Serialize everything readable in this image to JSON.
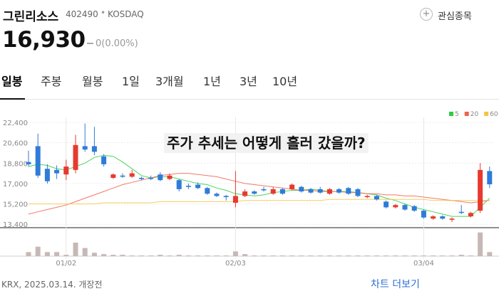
{
  "header": {
    "name": "그린리소스",
    "code": "402490",
    "market": "KOSDAQ",
    "watch": "관심종목"
  },
  "price": {
    "value": "16,930",
    "change": "0(0.00%)"
  },
  "tabs": [
    "일봉",
    "주봉",
    "월봉",
    "1일",
    "3개월",
    "1년",
    "3년",
    "10년"
  ],
  "chart_data": {
    "type": "candlestick",
    "annotation": "주가 추세는 어떻게 흘러 갔을까?",
    "categories": [
      null,
      null,
      null,
      null,
      "01/02",
      null,
      null,
      null,
      null,
      null,
      null,
      null,
      null,
      null,
      null,
      null,
      null,
      null,
      null,
      null,
      null,
      null,
      "02/03",
      null,
      null,
      null,
      null,
      null,
      null,
      null,
      null,
      null,
      null,
      null,
      null,
      null,
      null,
      null,
      null,
      null,
      null,
      null,
      "03/04",
      null,
      null,
      null,
      null,
      null,
      null,
      null
    ],
    "open": [
      18900,
      20300,
      18300,
      18200,
      17800,
      18200,
      20300,
      20300,
      19400,
      17500,
      17700,
      17600,
      17500,
      17500,
      17800,
      17400,
      17300,
      16800,
      16900,
      16600,
      16100,
      15900,
      15300,
      15900,
      16300,
      16500,
      16100,
      16500,
      16500,
      16700,
      16500,
      16500,
      16100,
      16500,
      16600,
      16500,
      15800,
      15900,
      15400,
      14900,
      15100,
      15000,
      14600,
      13900,
      14100,
      13800,
      14500,
      14100,
      14600,
      18100
    ],
    "high": [
      19900,
      21400,
      18700,
      18600,
      19100,
      21300,
      22300,
      22000,
      19600,
      17900,
      17900,
      18200,
      17600,
      17700,
      18000,
      17900,
      17400,
      17000,
      17100,
      16700,
      16200,
      16000,
      18100,
      16500,
      16400,
      16700,
      16700,
      16600,
      17000,
      16800,
      16600,
      16700,
      16600,
      16600,
      16700,
      16600,
      16000,
      16000,
      15500,
      15200,
      15200,
      15100,
      14700,
      14200,
      14200,
      14000,
      15100,
      14500,
      18800,
      18500
    ],
    "low": [
      18500,
      17500,
      17000,
      17400,
      17300,
      17900,
      19800,
      19500,
      18500,
      17400,
      17500,
      17500,
      17300,
      17300,
      17200,
      17300,
      16300,
      16500,
      16500,
      16000,
      15800,
      15500,
      14900,
      15800,
      16000,
      16300,
      16000,
      16000,
      16400,
      16200,
      16100,
      16100,
      16000,
      16100,
      16000,
      15800,
      15700,
      15500,
      14800,
      14800,
      14600,
      14500,
      13900,
      13800,
      13800,
      13600,
      14300,
      14000,
      14400,
      16600
    ],
    "close": [
      18700,
      17700,
      17200,
      17900,
      18500,
      20400,
      20000,
      19800,
      18700,
      17800,
      17600,
      17900,
      17400,
      17400,
      17300,
      17700,
      16500,
      16700,
      16600,
      16100,
      15900,
      15800,
      15900,
      16300,
      16100,
      16400,
      16500,
      16100,
      16900,
      16300,
      16200,
      16200,
      16500,
      16200,
      16100,
      15900,
      15900,
      15600,
      14900,
      15100,
      14700,
      14600,
      14000,
      14100,
      13900,
      13900,
      14400,
      14400,
      18200,
      16930
    ],
    "up_color": "#e8392f",
    "down_color": "#2f7bd8",
    "ylim": [
      13100,
      22840
    ],
    "yticks": [
      {
        "value": 22400,
        "label": "22,400"
      },
      {
        "value": 20600,
        "label": "20,600"
      },
      {
        "value": 18800,
        "label": "18,800"
      },
      {
        "value": 17000,
        "label": "17,000"
      },
      {
        "value": 15200,
        "label": "15,200"
      },
      {
        "value": 13400,
        "label": "13,400"
      }
    ],
    "grid": true,
    "moving_averages": [
      {
        "name": "5",
        "color": "#2ecc40",
        "values": [
          18500,
          18700,
          18600,
          18300,
          18200,
          18500,
          18800,
          19300,
          19500,
          19400,
          18900,
          18300,
          17700,
          17500,
          17600,
          17600,
          17400,
          17200,
          17000,
          16900,
          16600,
          16400,
          16100,
          16000,
          15900,
          16000,
          16200,
          16300,
          16400,
          16400,
          16500,
          16400,
          16300,
          16300,
          16300,
          16200,
          16100,
          16000,
          15700,
          15500,
          15200,
          14900,
          14700,
          14500,
          14300,
          14100,
          14100,
          14100,
          14900,
          15700
        ]
      },
      {
        "name": "20",
        "color": "#f0624d",
        "values": [
          14300,
          14500,
          14700,
          14900,
          15100,
          15400,
          15700,
          16000,
          16300,
          16600,
          16900,
          17100,
          17300,
          17500,
          17700,
          17800,
          17900,
          17900,
          17800,
          17700,
          17600,
          17400,
          17200,
          17000,
          16900,
          16800,
          16700,
          16600,
          16500,
          16400,
          16400,
          16300,
          16300,
          16300,
          16200,
          16200,
          16100,
          16100,
          16000,
          16000,
          15900,
          15900,
          15800,
          15700,
          15600,
          15500,
          15400,
          15300,
          15400,
          15500
        ]
      },
      {
        "name": "60",
        "color": "#f5c542",
        "values": [
          15200,
          15200,
          15200,
          15200,
          15200,
          15200,
          15200,
          15200,
          15300,
          15300,
          15300,
          15300,
          15300,
          15300,
          15400,
          15400,
          15400,
          15400,
          15400,
          15400,
          15400,
          15400,
          15400,
          15500,
          15500,
          15500,
          15500,
          15500,
          15500,
          15500,
          15500,
          15500,
          15600,
          15600,
          15600,
          15600,
          15600,
          15600,
          15600,
          15600,
          15600,
          15600,
          15600,
          15500,
          15500,
          15500,
          15500,
          15500,
          15500,
          15500
        ]
      }
    ],
    "volume": {
      "color": "#c6b8b5",
      "ylim": [
        0,
        80
      ],
      "values": [
        12,
        28,
        12,
        12,
        4,
        40,
        24,
        10,
        6,
        4,
        4,
        2,
        2,
        2,
        4,
        2,
        4,
        2,
        2,
        2,
        2,
        2,
        14,
        6,
        2,
        2,
        2,
        2,
        2,
        2,
        2,
        2,
        2,
        2,
        2,
        2,
        2,
        2,
        2,
        2,
        2,
        2,
        2,
        2,
        2,
        2,
        4,
        2,
        70,
        12
      ]
    }
  },
  "footer": {
    "source": "KRX, 2025.03.14. 개장전",
    "more": "차트 더보기"
  }
}
